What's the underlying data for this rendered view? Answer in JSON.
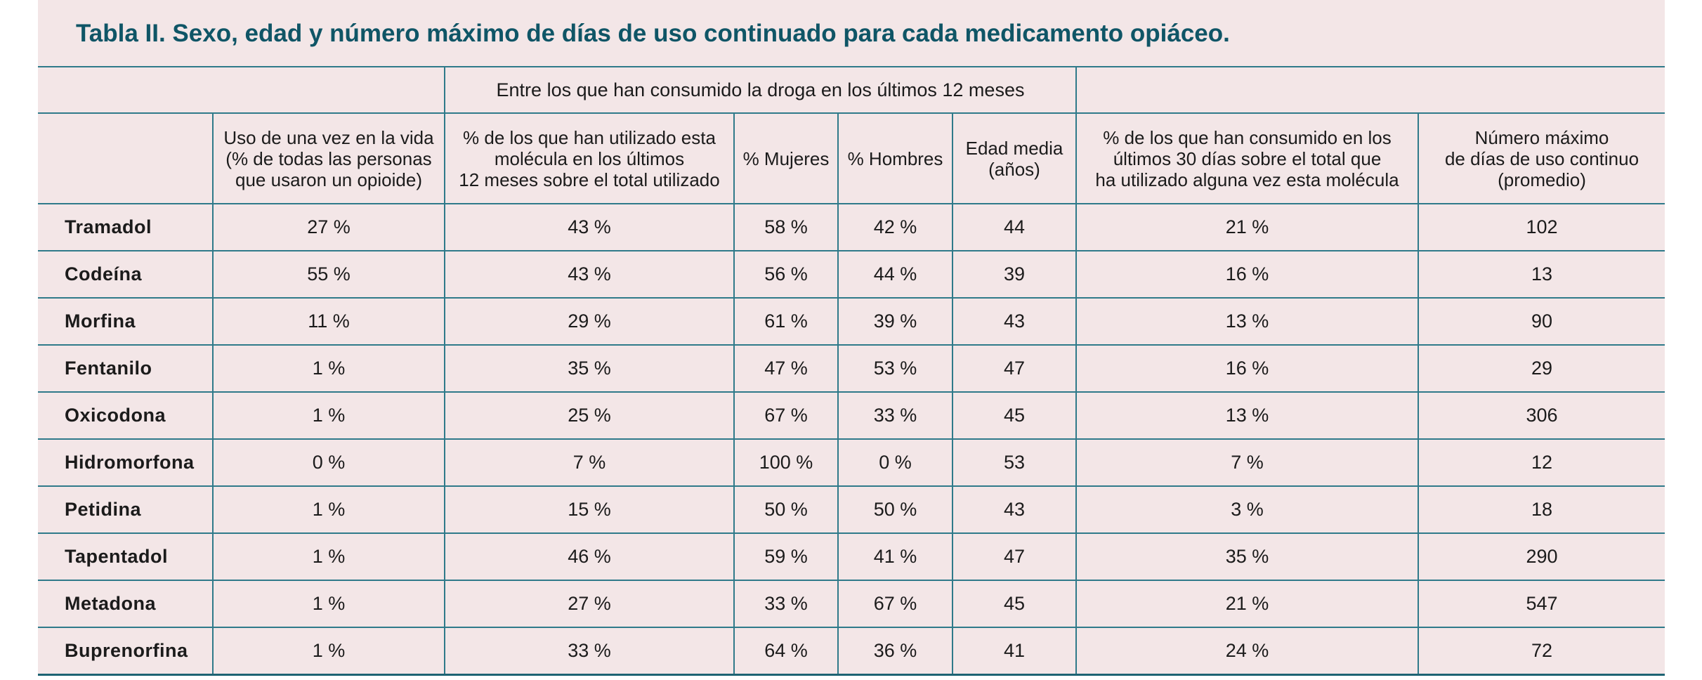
{
  "title": "Tabla II. Sexo, edad y número máximo de días de uso continuado para cada medicamento opiáceo.",
  "group_header": "Entre los que han consumido la droga en los últimos 12 meses",
  "columns": [
    "",
    "Uso de una vez en la vida\n(% de todas las personas\nque usaron un opioide)",
    "% de los que han utilizado esta\nmolécula en los últimos\n12 meses sobre el total utilizado",
    "% Mujeres",
    "% Hombres",
    "Edad media\n(años)",
    "% de los que han consumido en los\núltimos 30 días sobre el total que\nha utilizado alguna vez esta molécula",
    "Número máximo\nde días de uso continuo\n(promedio)"
  ],
  "rows": [
    [
      "Tramadol",
      "27 %",
      "43 %",
      "58 %",
      "42 %",
      "44",
      "21 %",
      "102"
    ],
    [
      "Codeína",
      "55 %",
      "43 %",
      "56 %",
      "44 %",
      "39",
      "16 %",
      "13"
    ],
    [
      "Morfina",
      "11 %",
      "29 %",
      "61 %",
      "39 %",
      "43",
      "13 %",
      "90"
    ],
    [
      "Fentanilo",
      "1 %",
      "35 %",
      "47 %",
      "53 %",
      "47",
      "16 %",
      "29"
    ],
    [
      "Oxicodona",
      "1 %",
      "25 %",
      "67 %",
      "33 %",
      "45",
      "13 %",
      "306"
    ],
    [
      "Hidromorfona",
      "0 %",
      "7 %",
      "100 %",
      "0 %",
      "53",
      "7 %",
      "12"
    ],
    [
      "Petidina",
      "1 %",
      "15 %",
      "50 %",
      "50 %",
      "43",
      "3 %",
      "18"
    ],
    [
      "Tapentadol",
      "1 %",
      "46 %",
      "59 %",
      "41 %",
      "47",
      "35 %",
      "290"
    ],
    [
      "Metadona",
      "1 %",
      "27 %",
      "33 %",
      "67 %",
      "45",
      "21 %",
      "547"
    ],
    [
      "Buprenorfina",
      "1 %",
      "33 %",
      "64 %",
      "36 %",
      "41",
      "24 %",
      "72"
    ]
  ]
}
